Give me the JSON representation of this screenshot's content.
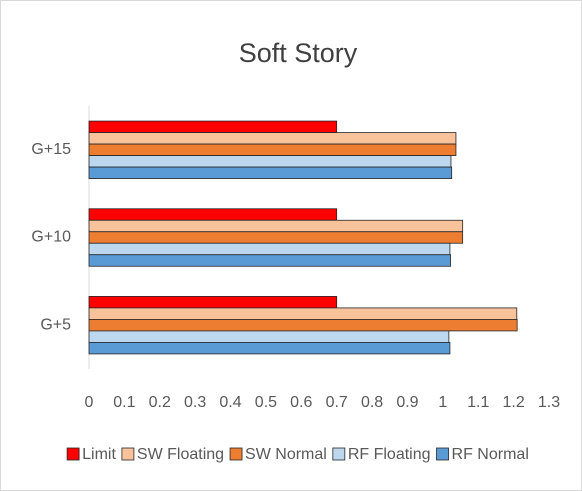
{
  "chart_data": {
    "type": "hbar",
    "title": "Soft Story",
    "categories": [
      "G+5",
      "G+10",
      "G+15"
    ],
    "series": [
      {
        "name": "Limit",
        "color": "#ff0000",
        "values": [
          0.7,
          0.7,
          0.7
        ]
      },
      {
        "name": "SW Floating",
        "color": "#f8c39b",
        "values": [
          1.209,
          1.056,
          1.037
        ]
      },
      {
        "name": "SW Normal",
        "color": "#ed7d31",
        "values": [
          1.21,
          1.056,
          1.037
        ]
      },
      {
        "name": "RF Floating",
        "color": "#bdd7ee",
        "values": [
          1.017,
          1.02,
          1.023
        ]
      },
      {
        "name": "RF Normal",
        "color": "#5b9bd5",
        "values": [
          1.02,
          1.022,
          1.025
        ]
      }
    ],
    "xlim": [
      0,
      1.3
    ],
    "xticks": [
      0,
      0.1,
      0.2,
      0.3,
      0.4,
      0.5,
      0.6,
      0.7,
      0.8,
      0.9,
      1,
      1.1,
      1.2,
      1.3
    ],
    "legend": "bottom"
  }
}
